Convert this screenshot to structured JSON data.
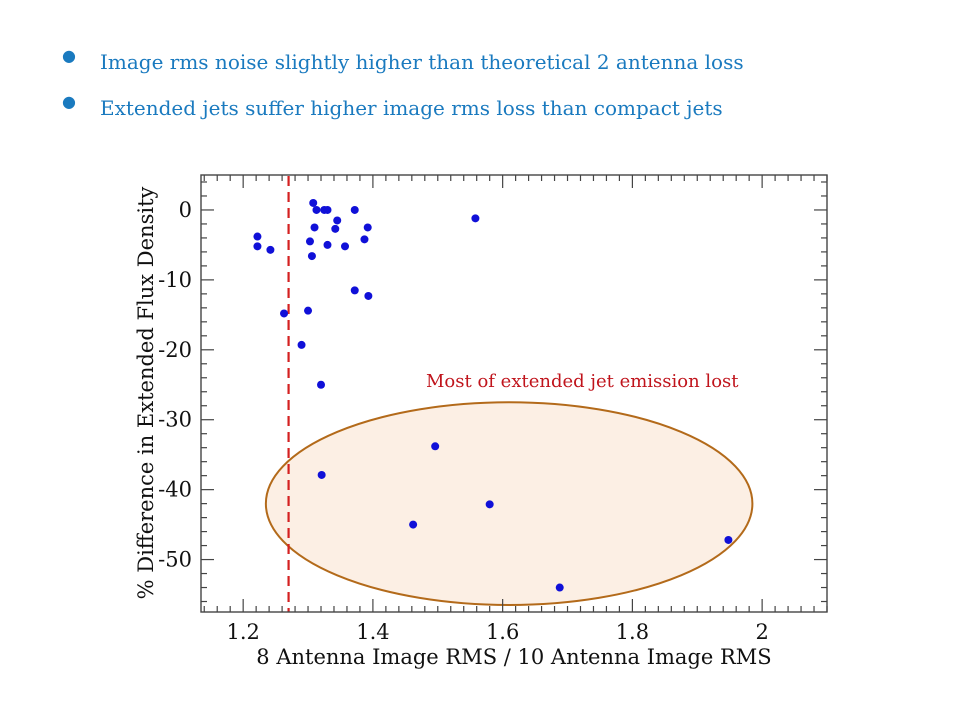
{
  "bullets": [
    "Image rms noise slightly higher than theoretical 2 antenna loss",
    "Extended jets suffer higher image rms loss than compact jets"
  ],
  "colors": {
    "bullet_text": "#1a7abf",
    "points": "#1010d8",
    "dashed_line": "#d42020",
    "ellipse_stroke": "#b36a1a",
    "ellipse_fill": "#fcefe4",
    "annotation": "#c0141c"
  },
  "chart_data": {
    "type": "scatter",
    "xlabel": "8 Antenna Image RMS / 10 Antenna Image RMS",
    "ylabel": "% Difference in Extended Flux Density",
    "xlim": [
      1.135,
      2.1
    ],
    "ylim": [
      -57.5,
      5
    ],
    "xticks": [
      1.2,
      1.4,
      1.6,
      1.8,
      2
    ],
    "xtick_labels": [
      "1.2",
      "1.4",
      "1.6",
      "1.8",
      "2"
    ],
    "yticks": [
      0,
      -10,
      -20,
      -30,
      -40,
      -50
    ],
    "ytick_labels": [
      "0",
      "-10",
      "-20",
      "-30",
      "-40",
      "-50"
    ],
    "grid": false,
    "reference_line": {
      "x": 1.27,
      "style": "dashed"
    },
    "highlight_ellipse": {
      "cx": 1.61,
      "cy": -42,
      "rx": 0.375,
      "ry": 14.5
    },
    "annotation": "Most of extended jet emission lost",
    "points": [
      {
        "x": 1.308,
        "y": 1.0
      },
      {
        "x": 1.313,
        "y": 0.0
      },
      {
        "x": 1.325,
        "y": 0.0
      },
      {
        "x": 1.33,
        "y": 0.0
      },
      {
        "x": 1.372,
        "y": 0.0
      },
      {
        "x": 1.345,
        "y": -1.5
      },
      {
        "x": 1.558,
        "y": -1.2
      },
      {
        "x": 1.31,
        "y": -2.5
      },
      {
        "x": 1.342,
        "y": -2.7
      },
      {
        "x": 1.392,
        "y": -2.5
      },
      {
        "x": 1.222,
        "y": -3.8
      },
      {
        "x": 1.222,
        "y": -5.2
      },
      {
        "x": 1.242,
        "y": -5.7
      },
      {
        "x": 1.303,
        "y": -4.5
      },
      {
        "x": 1.33,
        "y": -5.0
      },
      {
        "x": 1.357,
        "y": -5.2
      },
      {
        "x": 1.387,
        "y": -4.2
      },
      {
        "x": 1.306,
        "y": -6.6
      },
      {
        "x": 1.372,
        "y": -11.5
      },
      {
        "x": 1.393,
        "y": -12.3
      },
      {
        "x": 1.263,
        "y": -14.8
      },
      {
        "x": 1.3,
        "y": -14.4
      },
      {
        "x": 1.29,
        "y": -19.3
      },
      {
        "x": 1.32,
        "y": -25.0
      },
      {
        "x": 1.496,
        "y": -33.8
      },
      {
        "x": 1.321,
        "y": -37.9
      },
      {
        "x": 1.58,
        "y": -42.1
      },
      {
        "x": 1.462,
        "y": -45.0
      },
      {
        "x": 1.948,
        "y": -47.2
      },
      {
        "x": 1.688,
        "y": -54.0
      }
    ]
  }
}
